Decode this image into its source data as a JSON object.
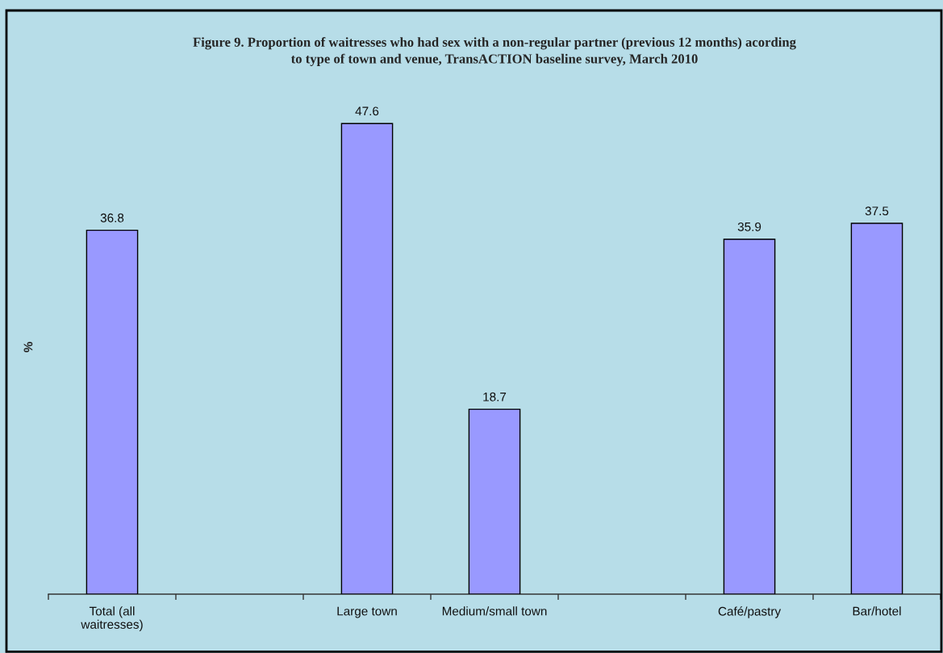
{
  "chart_data": {
    "type": "bar",
    "title": "Figure 9. Proportion of waitresses who had sex with a non-regular partner (previous 12 months) acording\nto type of town and venue, TransACTION baseline survey, March 2010",
    "ylabel": "%",
    "categories": [
      "Total (all\nwaitresses)",
      null,
      "Large town",
      "Medium/small town",
      null,
      "Café/pastry",
      "Bar/hotel"
    ],
    "values": [
      36.8,
      null,
      47.6,
      18.7,
      null,
      35.9,
      37.5
    ],
    "color": "#9999ff",
    "data_labels": true,
    "tick_labels": "x"
  }
}
